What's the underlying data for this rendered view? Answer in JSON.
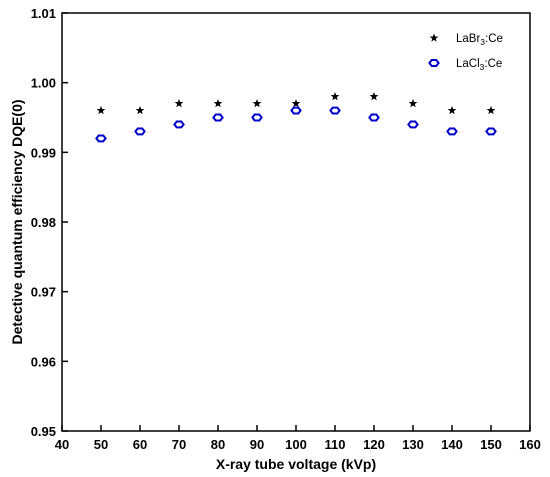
{
  "chart_data": {
    "type": "scatter",
    "xlabel": "X-ray tube voltage (kVp)",
    "ylabel": "Detective quantum efficiency DQE(0)",
    "xlim": [
      40,
      160
    ],
    "ylim": [
      0.95,
      1.01
    ],
    "xticks": [
      "40",
      "50",
      "60",
      "70",
      "80",
      "90",
      "100",
      "110",
      "120",
      "130",
      "140",
      "150",
      "160"
    ],
    "yticks": [
      "0.95",
      "0.96",
      "0.97",
      "0.98",
      "0.99",
      "1.00",
      "1.01"
    ],
    "grid": false,
    "legend_position": "top-right",
    "series": [
      {
        "name": "LaBr3:Ce",
        "legend_main": "LaBr",
        "legend_sub": "3",
        "legend_suffix": ":Ce",
        "marker": "star",
        "color": "#000000",
        "x": [
          50,
          60,
          70,
          80,
          90,
          100,
          110,
          120,
          130,
          140,
          150
        ],
        "y": [
          0.996,
          0.996,
          0.997,
          0.997,
          0.997,
          0.997,
          0.998,
          0.998,
          0.997,
          0.996,
          0.996
        ]
      },
      {
        "name": "LaCl3:Ce",
        "legend_main": "LaCl",
        "legend_sub": "3",
        "legend_suffix": ":Ce",
        "marker": "hexagon",
        "color": "#0000cc",
        "x": [
          50,
          60,
          70,
          80,
          90,
          100,
          110,
          120,
          130,
          140,
          150
        ],
        "y": [
          0.992,
          0.993,
          0.994,
          0.995,
          0.995,
          0.996,
          0.996,
          0.995,
          0.994,
          0.993,
          0.993
        ]
      }
    ]
  }
}
